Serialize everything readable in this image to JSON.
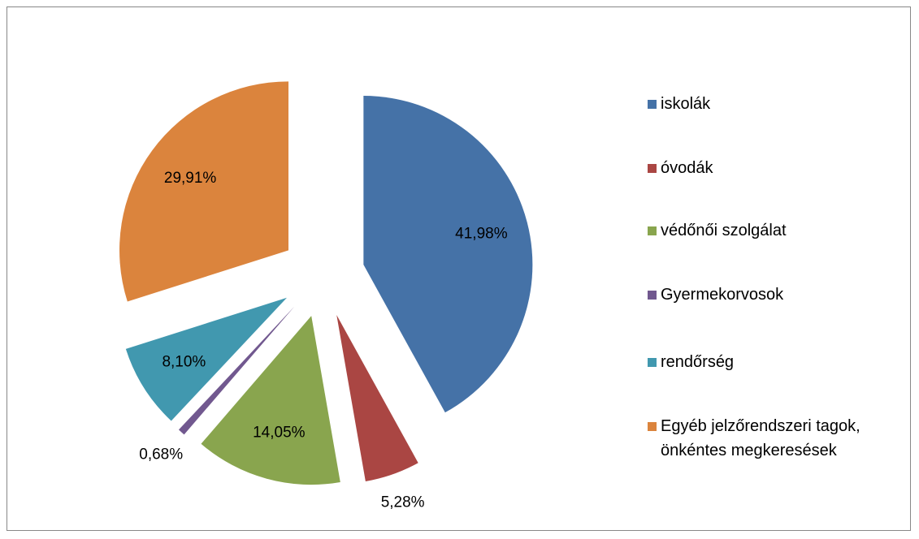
{
  "chart_data": {
    "type": "pie",
    "categories": [
      "iskolák",
      "óvodák",
      "védőnői szolgálat",
      "Gyermekorvosok",
      "rendőrség",
      "Egyéb jelzőrendszeri tagok, önkéntes megkeresések"
    ],
    "values": [
      41.98,
      5.28,
      14.05,
      0.68,
      8.1,
      29.91
    ],
    "value_labels": [
      "41,98%",
      "5,28%",
      "14,05%",
      "0,68%",
      "8,10%",
      "29,91%"
    ],
    "colors": [
      "#4572a7",
      "#aa4643",
      "#89a54e",
      "#71588f",
      "#4198af",
      "#db843d"
    ],
    "legend": "right"
  }
}
